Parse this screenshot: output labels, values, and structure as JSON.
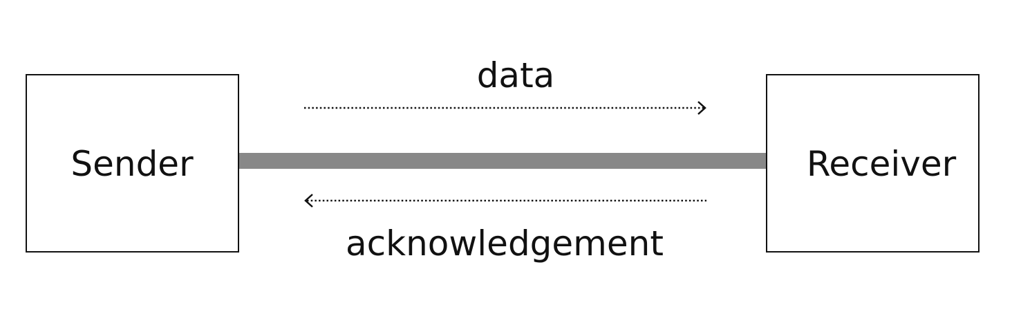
{
  "nodes": {
    "sender": {
      "label": "Sender"
    },
    "receiver": {
      "label": "Receiver"
    }
  },
  "edges": {
    "data": {
      "label": "data",
      "direction": "sender-to-receiver",
      "style": "dotted"
    },
    "acknowledgement": {
      "label": "acknowledgement",
      "direction": "receiver-to-sender",
      "style": "dotted"
    }
  },
  "link": {
    "color": "#888888"
  },
  "colors": {
    "stroke": "#111111",
    "background": "#ffffff"
  }
}
